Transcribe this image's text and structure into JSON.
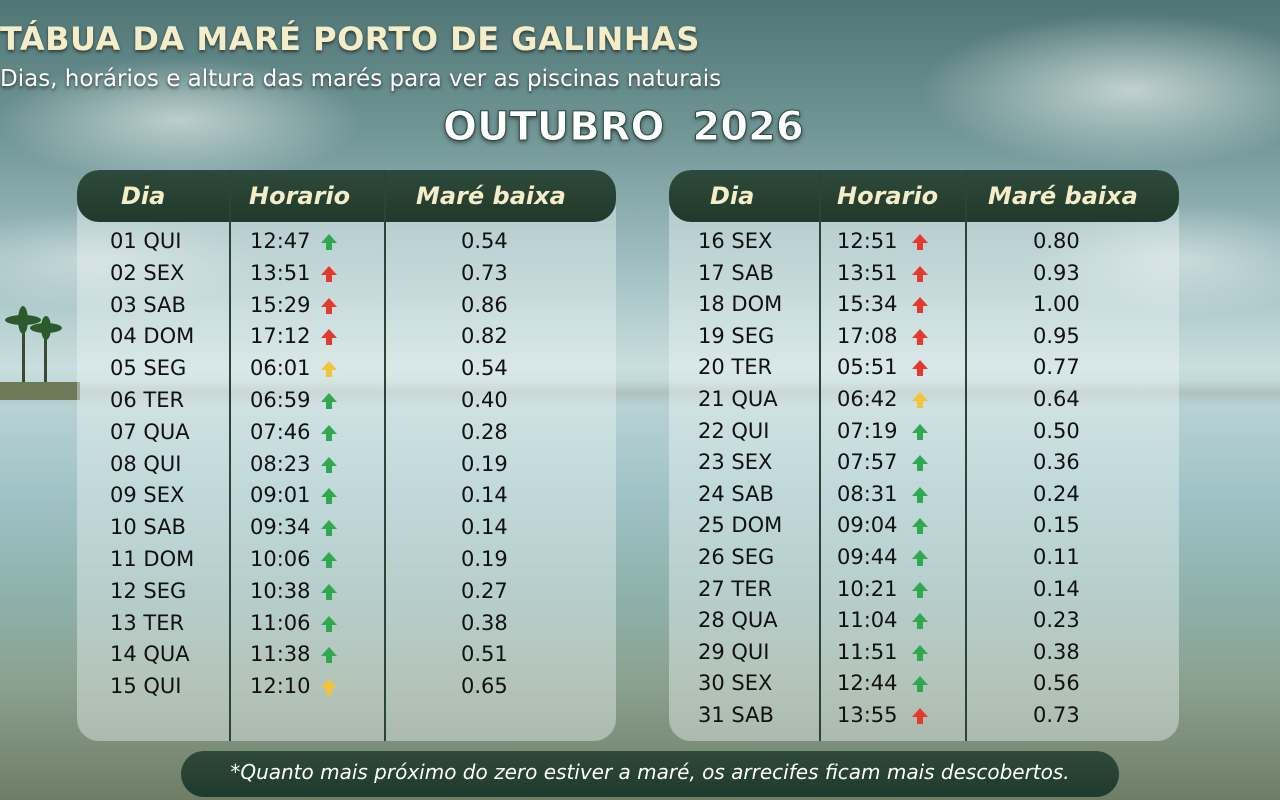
{
  "header": {
    "title": "TÁBUA DA MARÉ PORTO DE GALINHAS",
    "subtitle": "Dias, horários e altura das marés para ver as piscinas naturais",
    "month": "OUTUBRO  2026"
  },
  "columns": {
    "dia": "Dia",
    "horario": "Horario",
    "mare": "Maré baixa"
  },
  "colors": {
    "green": "#2fa84f",
    "red": "#e23b2e",
    "yellow": "#f2c43a",
    "header_bg": "#23402f",
    "header_text": "#f4edc8"
  },
  "left_rows": [
    {
      "dia": "01 QUI",
      "horario": "12:47",
      "trend": "green",
      "mare": "0.54"
    },
    {
      "dia": "02 SEX",
      "horario": "13:51",
      "trend": "red",
      "mare": "0.73"
    },
    {
      "dia": "03 SAB",
      "horario": "15:29",
      "trend": "red",
      "mare": "0.86"
    },
    {
      "dia": "04 DOM",
      "horario": "17:12",
      "trend": "red",
      "mare": "0.82"
    },
    {
      "dia": "05 SEG",
      "horario": "06:01",
      "trend": "yellow",
      "mare": "0.54"
    },
    {
      "dia": "06 TER",
      "horario": "06:59",
      "trend": "green",
      "mare": "0.40"
    },
    {
      "dia": "07 QUA",
      "horario": "07:46",
      "trend": "green",
      "mare": "0.28"
    },
    {
      "dia": "08 QUI",
      "horario": "08:23",
      "trend": "green",
      "mare": "0.19"
    },
    {
      "dia": "09 SEX",
      "horario": "09:01",
      "trend": "green",
      "mare": "0.14"
    },
    {
      "dia": "10 SAB",
      "horario": "09:34",
      "trend": "green",
      "mare": "0.14"
    },
    {
      "dia": "11 DOM",
      "horario": "10:06",
      "trend": "green",
      "mare": "0.19"
    },
    {
      "dia": "12 SEG",
      "horario": "10:38",
      "trend": "green",
      "mare": "0.27"
    },
    {
      "dia": "13 TER",
      "horario": "11:06",
      "trend": "green",
      "mare": "0.38"
    },
    {
      "dia": "14 QUA",
      "horario": "11:38",
      "trend": "green",
      "mare": "0.51"
    },
    {
      "dia": "15 QUI",
      "horario": "12:10",
      "trend": "yellow",
      "mare": "0.65"
    }
  ],
  "right_rows": [
    {
      "dia": "16 SEX",
      "horario": "12:51",
      "trend": "red",
      "mare": "0.80"
    },
    {
      "dia": "17 SAB",
      "horario": "13:51",
      "trend": "red",
      "mare": "0.93"
    },
    {
      "dia": "18 DOM",
      "horario": "15:34",
      "trend": "red",
      "mare": "1.00"
    },
    {
      "dia": "19 SEG",
      "horario": "17:08",
      "trend": "red",
      "mare": "0.95"
    },
    {
      "dia": "20 TER",
      "horario": "05:51",
      "trend": "red",
      "mare": "0.77"
    },
    {
      "dia": "21 QUA",
      "horario": "06:42",
      "trend": "yellow",
      "mare": "0.64"
    },
    {
      "dia": "22 QUI",
      "horario": "07:19",
      "trend": "green",
      "mare": "0.50"
    },
    {
      "dia": "23 SEX",
      "horario": "07:57",
      "trend": "green",
      "mare": "0.36"
    },
    {
      "dia": "24 SAB",
      "horario": "08:31",
      "trend": "green",
      "mare": "0.24"
    },
    {
      "dia": "25 DOM",
      "horario": "09:04",
      "trend": "green",
      "mare": "0.15"
    },
    {
      "dia": "26 SEG",
      "horario": "09:44",
      "trend": "green",
      "mare": "0.11"
    },
    {
      "dia": "27 TER",
      "horario": "10:21",
      "trend": "green",
      "mare": "0.14"
    },
    {
      "dia": "28 QUA",
      "horario": "11:04",
      "trend": "green",
      "mare": "0.23"
    },
    {
      "dia": "29 QUI",
      "horario": "11:51",
      "trend": "green",
      "mare": "0.38"
    },
    {
      "dia": "30 SEX",
      "horario": "12:44",
      "trend": "green",
      "mare": "0.56"
    },
    {
      "dia": "31 SAB",
      "horario": "13:55",
      "trend": "red",
      "mare": "0.73"
    }
  ],
  "footer": "*Quanto mais próximo do zero estiver a maré, os arrecifes ficam mais descobertos."
}
